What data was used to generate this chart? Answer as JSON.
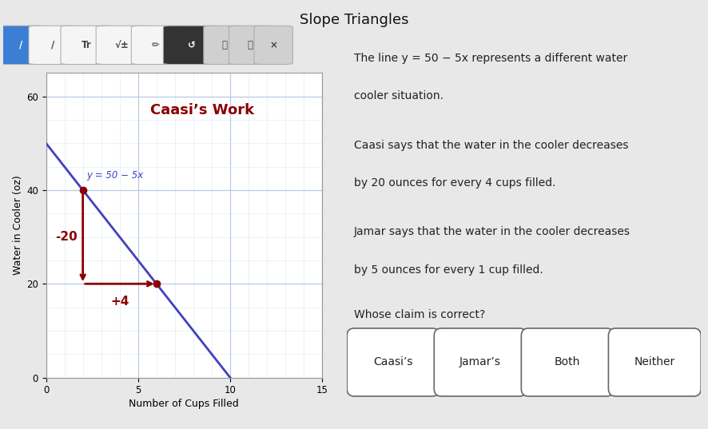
{
  "title": "Slope Triangles",
  "graph_title": "Caasi’s Work",
  "equation_label": "y = 50 − 5x",
  "xlabel": "Number of Cups Filled",
  "ylabel": "Water in Cooler (oz)",
  "xlim": [
    0,
    15
  ],
  "ylim": [
    0,
    65
  ],
  "xticks": [
    0,
    5,
    10,
    15
  ],
  "yticks": [
    0,
    20,
    40,
    60
  ],
  "line_color": "#4040c0",
  "triangle_color": "#8b0000",
  "line_x": [
    0,
    10
  ],
  "line_y": [
    50,
    0
  ],
  "triangle_x1": 2,
  "triangle_y1": 40,
  "triangle_x2": 6,
  "triangle_y2": 20,
  "vertical_label": "-20",
  "horizontal_label": "+4",
  "graph_title_color": "#8b0000",
  "equation_color": "#4040c0",
  "bg_color": "#e8e8e8",
  "plot_bg": "#ffffff",
  "grid_major_color": "#b8cce4",
  "grid_minor_color": "#d8e8f4",
  "toolbar_bg": "#d0d0d0",
  "toolbar_btn_blue": "#3a7fd4",
  "toolbar_btn_white": "#f5f5f5",
  "toolbar_btn_dark": "#333333",
  "right_para1_l1": "The line y = 50 − 5x represents a different water",
  "right_para1_l2": "cooler situation.",
  "right_para2_l1": "Caasi says that the water in the cooler decreases",
  "right_para2_l2": "by 20 ounces for every 4 cups filled.",
  "right_para3_l1": "Jamar says that the water in the cooler decreases",
  "right_para3_l2": "by 5 ounces for every 1 cup filled.",
  "right_q": "Whose claim is correct?",
  "button_labels": [
    "Caasi’s",
    "Jamar’s",
    "Both",
    "Neither"
  ],
  "divider_x": 0.485
}
